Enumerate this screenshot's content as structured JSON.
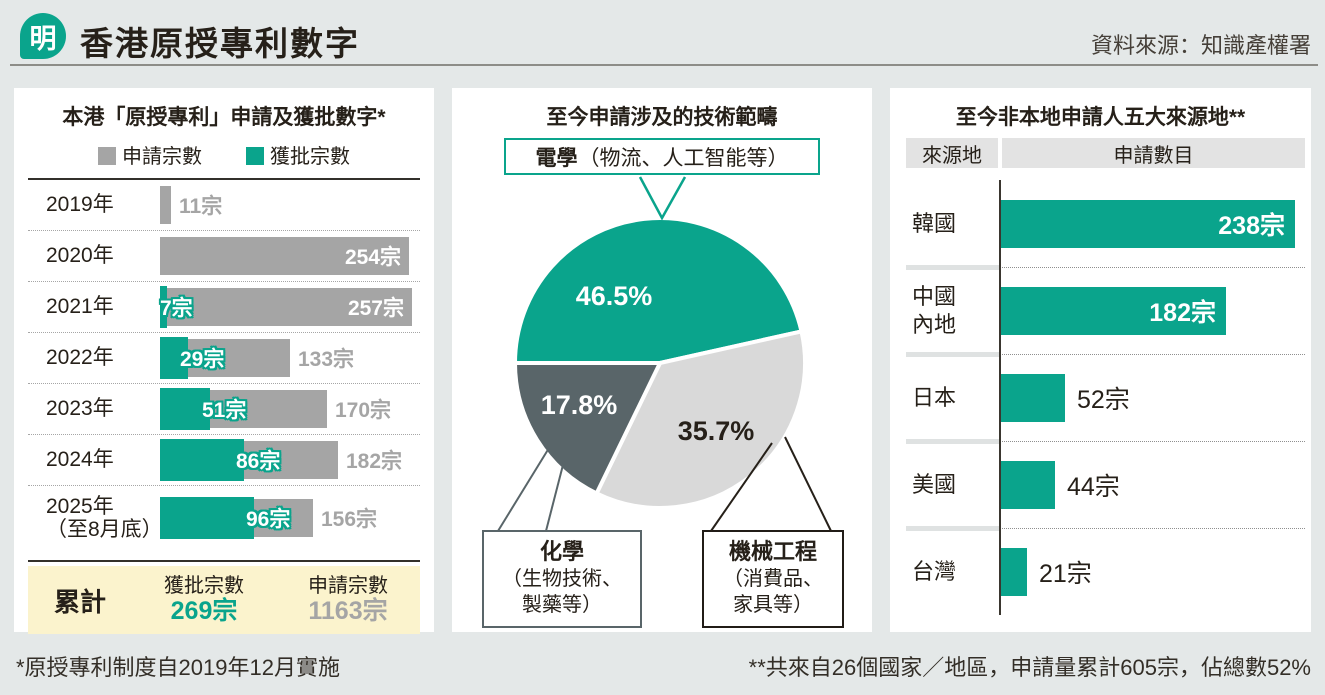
{
  "header": {
    "logo": "明",
    "title": "香港原授專利數字",
    "source": "資料來源：知識產權署"
  },
  "footnotes": {
    "left": "*原授專利制度自2019年12月實施",
    "right": "**共來自26個國家／地區，申請量累計605宗，佔總數52%"
  },
  "colors": {
    "teal": "#0aa48c",
    "bar_gray": "#a5a5a5",
    "pie_light_gray": "#d9d9d9",
    "pie_dark_slate": "#596569",
    "summary_bg": "#fbf3cd",
    "page_bg": "#e4e8e8"
  },
  "chart_data": [
    {
      "type": "bar",
      "orientation": "horizontal",
      "title": "本港「原授專利」申請及獲批數字*",
      "unit": "宗",
      "legend": [
        {
          "label": "申請宗數",
          "color": "#a5a5a5"
        },
        {
          "label": "獲批宗數",
          "color": "#0aa48c"
        }
      ],
      "categories": [
        "2019年",
        "2020年",
        "2021年",
        "2022年",
        "2023年",
        "2024年",
        "2025年（至8月底）"
      ],
      "series": [
        {
          "name": "申請宗數",
          "values": [
            11,
            254,
            257,
            133,
            170,
            182,
            156
          ]
        },
        {
          "name": "獲批宗數",
          "values": [
            null,
            null,
            7,
            29,
            51,
            86,
            96
          ]
        }
      ],
      "xlim": [
        0,
        257
      ],
      "rows": [
        {
          "year_lines": [
            "2019年"
          ],
          "applied": 11,
          "applied_label": "11宗",
          "applied_inside": false,
          "granted": null,
          "granted_label": null
        },
        {
          "year_lines": [
            "2020年"
          ],
          "applied": 254,
          "applied_label": "254宗",
          "applied_inside": true,
          "granted": null,
          "granted_label": null
        },
        {
          "year_lines": [
            "2021年"
          ],
          "applied": 257,
          "applied_label": "257宗",
          "applied_inside": true,
          "granted": 7,
          "granted_label": "7宗"
        },
        {
          "year_lines": [
            "2022年"
          ],
          "applied": 133,
          "applied_label": "133宗",
          "applied_inside": false,
          "granted": 29,
          "granted_label": "29宗"
        },
        {
          "year_lines": [
            "2023年"
          ],
          "applied": 170,
          "applied_label": "170宗",
          "applied_inside": false,
          "granted": 51,
          "granted_label": "51宗"
        },
        {
          "year_lines": [
            "2024年"
          ],
          "applied": 182,
          "applied_label": "182宗",
          "applied_inside": false,
          "granted": 86,
          "granted_label": "86宗"
        },
        {
          "year_lines": [
            "2025年",
            "（至8月底）"
          ],
          "applied": 156,
          "applied_label": "156宗",
          "applied_inside": false,
          "granted": 96,
          "granted_label": "96宗"
        }
      ],
      "summary": {
        "label": "累計",
        "cols": [
          {
            "title": "獲批宗數",
            "value": "269宗",
            "color": "#0aa48c"
          },
          {
            "title": "申請宗數",
            "value": "1163宗",
            "color": "#a5a5a5"
          }
        ]
      }
    },
    {
      "type": "pie",
      "title": "至今申請涉及的技術範疇",
      "start_angle_deg": 180,
      "direction": "clockwise",
      "slices": [
        {
          "label": "電學",
          "sublabel": "（物流、人工智能等）",
          "value": 46.5,
          "pct_label": "46.5%",
          "color": "#0aa48c",
          "pct_color": "#ffffff"
        },
        {
          "label": "機械工程",
          "sublabel_lines": [
            "（消費品、",
            "家具等）"
          ],
          "value": 35.7,
          "pct_label": "35.7%",
          "color": "#d9d9d9",
          "pct_color": "#262019"
        },
        {
          "label": "化學",
          "sublabel_lines": [
            "（生物技術、",
            "製藥等）"
          ],
          "value": 17.8,
          "pct_label": "17.8%",
          "color": "#596569",
          "pct_color": "#ffffff"
        }
      ]
    },
    {
      "type": "bar",
      "orientation": "horizontal",
      "title": "至今非本地申請人五大來源地**",
      "unit": "宗",
      "col_headers": [
        "來源地",
        "申請數目"
      ],
      "categories": [
        "韓國",
        "中國內地",
        "日本",
        "美國",
        "台灣"
      ],
      "values": [
        238,
        182,
        52,
        44,
        21
      ],
      "xlim": [
        0,
        238
      ],
      "rows": [
        {
          "label_lines": [
            "韓國"
          ],
          "value": 238,
          "value_label": "238宗",
          "inside": true
        },
        {
          "label_lines": [
            "中國",
            "內地"
          ],
          "value": 182,
          "value_label": "182宗",
          "inside": true
        },
        {
          "label_lines": [
            "日本"
          ],
          "value": 52,
          "value_label": "52宗",
          "inside": false
        },
        {
          "label_lines": [
            "美國"
          ],
          "value": 44,
          "value_label": "44宗",
          "inside": false
        },
        {
          "label_lines": [
            "台灣"
          ],
          "value": 21,
          "value_label": "21宗",
          "inside": false
        }
      ]
    }
  ]
}
